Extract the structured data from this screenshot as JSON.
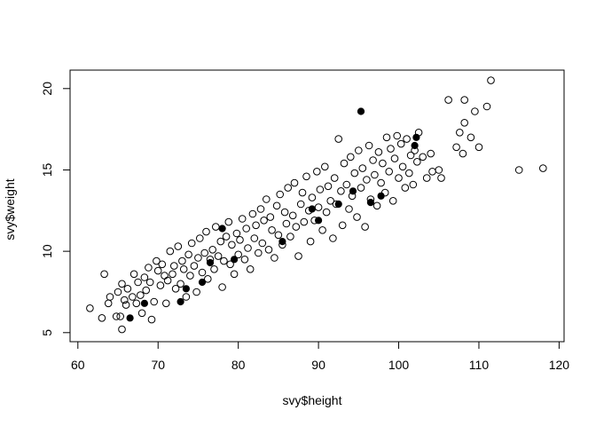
{
  "chart_data": {
    "type": "scatter",
    "title": "",
    "xlabel": "svy$height",
    "ylabel": "svy$weight",
    "xlim": [
      60,
      120
    ],
    "ylim": [
      5,
      20.5
    ],
    "x_ticks": [
      "60",
      "70",
      "80",
      "90",
      "100",
      "110",
      "120"
    ],
    "y_ticks": [
      "5",
      "10",
      "15",
      "20"
    ],
    "grid": false,
    "legend": "none",
    "colors": {
      "points": "#000000",
      "background": "#ffffff"
    },
    "series": [
      {
        "marker": "open-circle",
        "points": [
          [
            61.5,
            6.5
          ],
          [
            63,
            5.9
          ],
          [
            63.3,
            8.6
          ],
          [
            63.8,
            6.8
          ],
          [
            64,
            7.2
          ],
          [
            64.8,
            6
          ],
          [
            65,
            7.5
          ],
          [
            65.3,
            6
          ],
          [
            65.5,
            8
          ],
          [
            65.5,
            5.2
          ],
          [
            65.8,
            7
          ],
          [
            66,
            6.7
          ],
          [
            66.2,
            7.7
          ],
          [
            66.8,
            7.2
          ],
          [
            67,
            8.6
          ],
          [
            67.3,
            6.8
          ],
          [
            67.5,
            8.1
          ],
          [
            67.8,
            7.3
          ],
          [
            68,
            6.2
          ],
          [
            68.3,
            8.4
          ],
          [
            68.5,
            7.6
          ],
          [
            68.8,
            9
          ],
          [
            69,
            8.1
          ],
          [
            69.2,
            5.8
          ],
          [
            69.5,
            6.9
          ],
          [
            69.8,
            9.4
          ],
          [
            70,
            8.8
          ],
          [
            70.3,
            7.9
          ],
          [
            70.5,
            9.2
          ],
          [
            70.8,
            8.5
          ],
          [
            71,
            6.8
          ],
          [
            71.2,
            8.2
          ],
          [
            71.5,
            10
          ],
          [
            71.8,
            8.6
          ],
          [
            72,
            9.1
          ],
          [
            72.2,
            7.7
          ],
          [
            72.5,
            10.3
          ],
          [
            72.8,
            8
          ],
          [
            73,
            9.4
          ],
          [
            73.2,
            8.9
          ],
          [
            73.5,
            7.2
          ],
          [
            73.8,
            9.8
          ],
          [
            74,
            8.5
          ],
          [
            74.2,
            10.5
          ],
          [
            74.5,
            9.1
          ],
          [
            74.8,
            7.5
          ],
          [
            75,
            9.6
          ],
          [
            75.2,
            10.8
          ],
          [
            75.5,
            8.7
          ],
          [
            75.8,
            9.9
          ],
          [
            76,
            11.2
          ],
          [
            76.2,
            8.3
          ],
          [
            76.5,
            9.5
          ],
          [
            76.8,
            10.1
          ],
          [
            77,
            8.9
          ],
          [
            77.2,
            11.5
          ],
          [
            77.5,
            9.7
          ],
          [
            77.8,
            10.6
          ],
          [
            78,
            7.8
          ],
          [
            78.2,
            9.4
          ],
          [
            78.5,
            10.9
          ],
          [
            78.8,
            11.8
          ],
          [
            79,
            9.2
          ],
          [
            79.2,
            10.4
          ],
          [
            79.5,
            8.6
          ],
          [
            79.8,
            11.1
          ],
          [
            80,
            9.8
          ],
          [
            80.2,
            10.7
          ],
          [
            80.5,
            12
          ],
          [
            80.8,
            9.5
          ],
          [
            81,
            11.4
          ],
          [
            81.2,
            10.2
          ],
          [
            81.5,
            8.9
          ],
          [
            81.8,
            12.3
          ],
          [
            82,
            10.8
          ],
          [
            82.2,
            11.6
          ],
          [
            82.5,
            9.9
          ],
          [
            82.8,
            12.6
          ],
          [
            83,
            10.5
          ],
          [
            83.2,
            11.9
          ],
          [
            83.5,
            13.2
          ],
          [
            83.8,
            10.1
          ],
          [
            84,
            12.1
          ],
          [
            84.2,
            11.3
          ],
          [
            84.5,
            9.6
          ],
          [
            84.8,
            12.8
          ],
          [
            85,
            11
          ],
          [
            85.2,
            13.5
          ],
          [
            85.5,
            10.4
          ],
          [
            85.8,
            12.4
          ],
          [
            86,
            11.7
          ],
          [
            86.2,
            13.9
          ],
          [
            86.5,
            10.9
          ],
          [
            86.8,
            12.2
          ],
          [
            87,
            14.2
          ],
          [
            87.2,
            11.5
          ],
          [
            87.5,
            9.7
          ],
          [
            87.8,
            12.9
          ],
          [
            88,
            13.6
          ],
          [
            88.2,
            11.8
          ],
          [
            88.5,
            14.6
          ],
          [
            88.8,
            12.5
          ],
          [
            89,
            10.6
          ],
          [
            89.2,
            13.3
          ],
          [
            89.5,
            11.9
          ],
          [
            89.8,
            14.9
          ],
          [
            90,
            12.7
          ],
          [
            90.2,
            13.8
          ],
          [
            90.5,
            11.3
          ],
          [
            90.8,
            15.2
          ],
          [
            91,
            12.4
          ],
          [
            91.2,
            14
          ],
          [
            91.5,
            13.1
          ],
          [
            91.8,
            10.8
          ],
          [
            92,
            14.5
          ],
          [
            92.2,
            12.9
          ],
          [
            92.5,
            16.9
          ],
          [
            92.8,
            13.7
          ],
          [
            93,
            11.6
          ],
          [
            93.2,
            15.4
          ],
          [
            93.5,
            14.1
          ],
          [
            93.8,
            12.6
          ],
          [
            94,
            15.8
          ],
          [
            94.2,
            13.4
          ],
          [
            94.5,
            14.8
          ],
          [
            94.8,
            12.1
          ],
          [
            95,
            16.2
          ],
          [
            95.3,
            13.9
          ],
          [
            95.5,
            15.1
          ],
          [
            95.8,
            11.5
          ],
          [
            96,
            14.4
          ],
          [
            96.3,
            16.5
          ],
          [
            96.5,
            13.2
          ],
          [
            96.8,
            15.6
          ],
          [
            97,
            14.7
          ],
          [
            97.3,
            12.8
          ],
          [
            97.5,
            16.1
          ],
          [
            97.8,
            14.2
          ],
          [
            98,
            15.4
          ],
          [
            98.3,
            13.6
          ],
          [
            98.5,
            17
          ],
          [
            98.8,
            14.9
          ],
          [
            99,
            16.3
          ],
          [
            99.3,
            13.1
          ],
          [
            99.5,
            15.7
          ],
          [
            99.8,
            17.1
          ],
          [
            100,
            14.5
          ],
          [
            100.3,
            16.6
          ],
          [
            100.5,
            15.2
          ],
          [
            100.8,
            13.9
          ],
          [
            101,
            16.9
          ],
          [
            101.3,
            14.8
          ],
          [
            101.5,
            15.9
          ],
          [
            101.8,
            14.1
          ],
          [
            102,
            16.2
          ],
          [
            102.3,
            15.5
          ],
          [
            102.5,
            17.3
          ],
          [
            103,
            15.8
          ],
          [
            103.5,
            14.5
          ],
          [
            104,
            16
          ],
          [
            104.2,
            14.9
          ],
          [
            105,
            15
          ],
          [
            105.3,
            14.5
          ],
          [
            106.2,
            19.3
          ],
          [
            107.2,
            16.4
          ],
          [
            107.6,
            17.3
          ],
          [
            108,
            16
          ],
          [
            108.2,
            19.3
          ],
          [
            108.2,
            17.9
          ],
          [
            109,
            17
          ],
          [
            109.5,
            18.6
          ],
          [
            110,
            16.4
          ],
          [
            111,
            18.9
          ],
          [
            111.5,
            20.5
          ],
          [
            115,
            15
          ],
          [
            118,
            15.1
          ]
        ]
      },
      {
        "marker": "filled-circle",
        "points": [
          [
            66.5,
            5.9
          ],
          [
            68.3,
            6.8
          ],
          [
            72.8,
            6.9
          ],
          [
            73.5,
            7.7
          ],
          [
            75.5,
            8.1
          ],
          [
            76.5,
            9.3
          ],
          [
            78,
            11.4
          ],
          [
            79.5,
            9.5
          ],
          [
            85.5,
            10.6
          ],
          [
            89.2,
            12.6
          ],
          [
            90,
            11.9
          ],
          [
            92.5,
            12.9
          ],
          [
            94.3,
            13.7
          ],
          [
            95.3,
            18.6
          ],
          [
            96.5,
            13
          ],
          [
            97.8,
            13.4
          ],
          [
            102,
            16.5
          ],
          [
            102.2,
            17
          ]
        ]
      }
    ]
  }
}
